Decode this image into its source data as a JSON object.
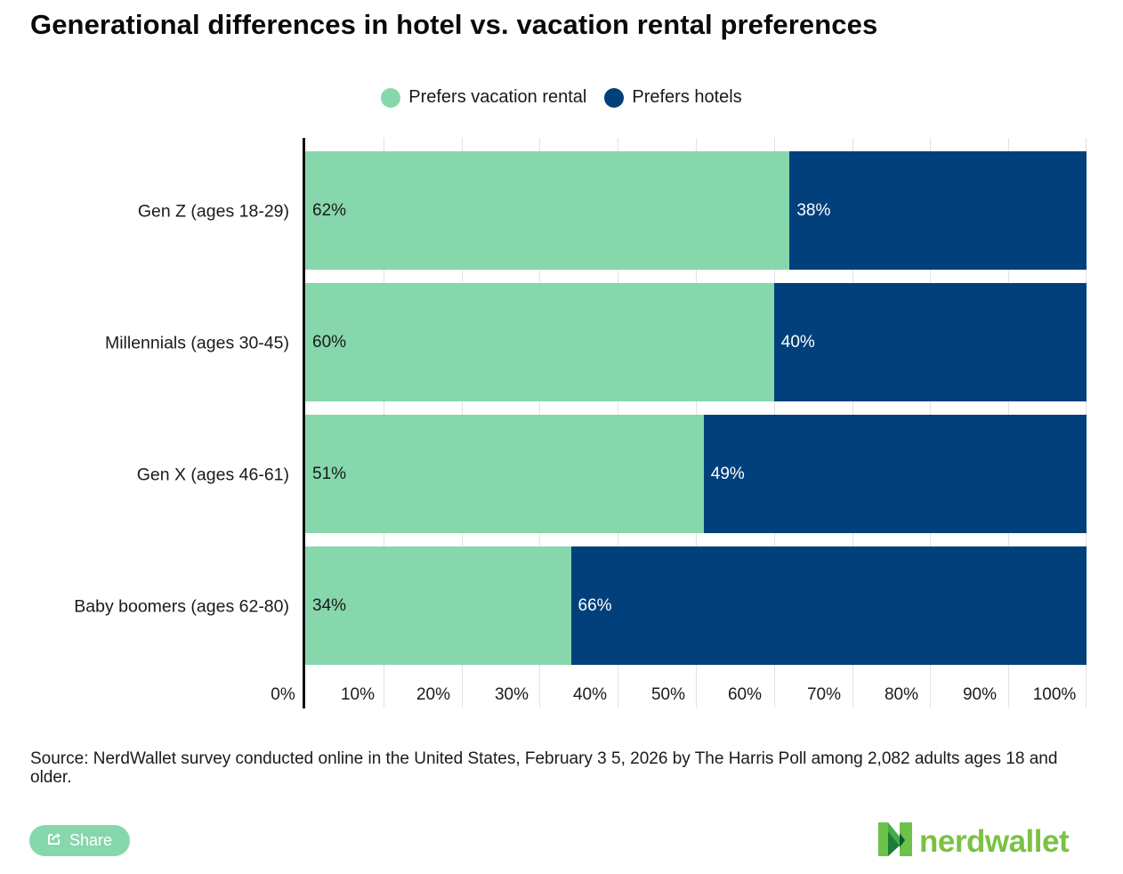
{
  "title": "Generational differences in hotel vs. vacation rental preferences",
  "legend": [
    {
      "label": "Prefers vacation rental",
      "color": "#86d7ac"
    },
    {
      "label": "Prefers hotels",
      "color": "#02407c"
    }
  ],
  "source": "Source: NerdWallet survey conducted online in the United States, February 3 5, 2026 by The Harris Poll among 2,082 adults ages 18 and older.",
  "share_label": "Share",
  "logo_text": "nerdwallet",
  "rows": [
    {
      "category": "Gen Z (ages 18-29)",
      "rental_label": "62%",
      "hotel_label": "38%"
    },
    {
      "category": "Millennials (ages 30-45)",
      "rental_label": "60%",
      "hotel_label": "40%"
    },
    {
      "category": "Gen X (ages 46-61)",
      "rental_label": "51%",
      "hotel_label": "49%"
    },
    {
      "category": "Baby boomers (ages 62-80)",
      "rental_label": "34%",
      "hotel_label": "66%"
    }
  ],
  "ticks": [
    "0%",
    "10%",
    "20%",
    "30%",
    "40%",
    "50%",
    "60%",
    "70%",
    "80%",
    "90%",
    "100%"
  ],
  "chart_data": {
    "type": "bar",
    "orientation": "horizontal",
    "stacked": true,
    "title": "Generational differences in hotel vs. vacation rental preferences",
    "categories": [
      "Gen Z (ages 18-29)",
      "Millennials (ages 30-45)",
      "Gen X (ages 46-61)",
      "Baby boomers (ages 62-80)"
    ],
    "series": [
      {
        "name": "Prefers vacation rental",
        "color": "#86d7ac",
        "values": [
          62,
          60,
          51,
          34
        ]
      },
      {
        "name": "Prefers hotels",
        "color": "#02407c",
        "values": [
          38,
          40,
          49,
          66
        ]
      }
    ],
    "xlabel": "",
    "ylabel": "",
    "xlim": [
      0,
      100
    ],
    "x_ticks": [
      "0%",
      "10%",
      "20%",
      "30%",
      "40%",
      "50%",
      "60%",
      "70%",
      "80%",
      "90%",
      "100%"
    ],
    "grid": true,
    "legend_position": "top-center",
    "data_labels": true,
    "source": "Source: NerdWallet survey conducted online in the United States, February 3 5, 2026 by The Harris Poll among 2,082 adults ages 18 and older."
  }
}
